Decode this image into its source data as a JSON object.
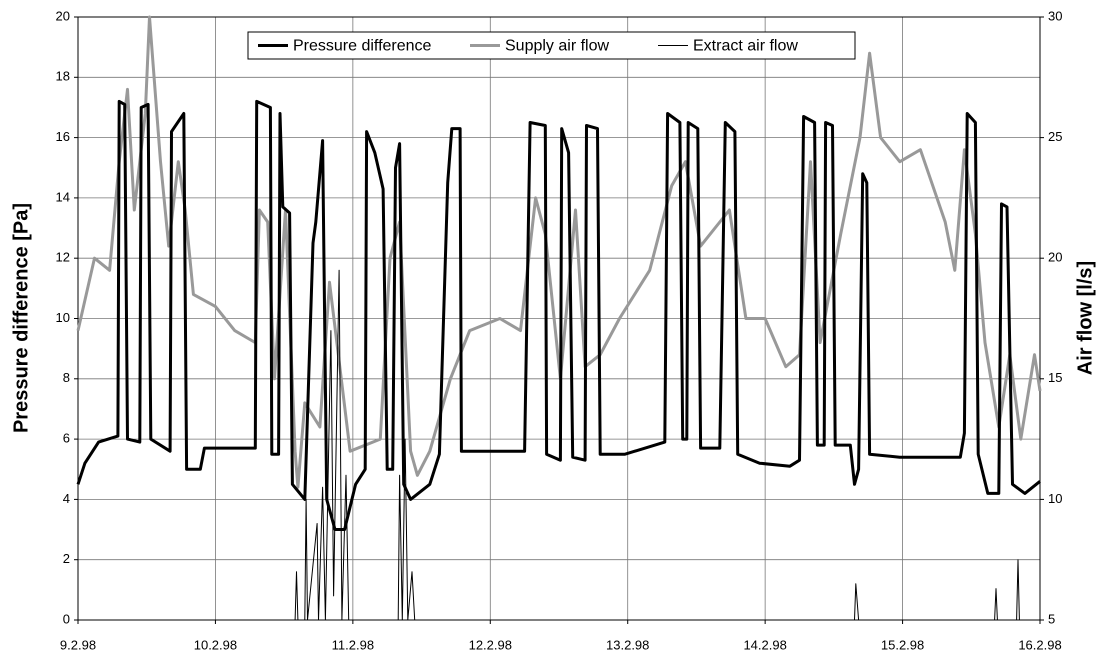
{
  "chart_data": {
    "type": "line",
    "y_label": "Pressure difference  [Pa]",
    "y2_label": "Air flow  [l/s]",
    "xlim": [
      0,
      7
    ],
    "xticks": [
      {
        "value": 0,
        "label": "9.2.98"
      },
      {
        "value": 1,
        "label": "10.2.98"
      },
      {
        "value": 2,
        "label": "11.2.98"
      },
      {
        "value": 3,
        "label": "12.2.98"
      },
      {
        "value": 4,
        "label": "13.2.98"
      },
      {
        "value": 5,
        "label": "14.2.98"
      },
      {
        "value": 6,
        "label": "15.2.98"
      },
      {
        "value": 7,
        "label": "16.2.98"
      }
    ],
    "ylim": [
      0,
      20
    ],
    "yticks": [
      0,
      2,
      4,
      6,
      8,
      10,
      12,
      14,
      16,
      18,
      20
    ],
    "y2lim": [
      5,
      30
    ],
    "y2ticks": [
      5,
      10,
      15,
      20,
      25,
      30
    ],
    "grid": true,
    "legend": "top",
    "series": [
      {
        "name": "Pressure difference",
        "color": "#000000",
        "width": 3,
        "axis": "y",
        "x": [
          0,
          0.05,
          0.15,
          0.29,
          0.3,
          0.34,
          0.36,
          0.45,
          0.46,
          0.51,
          0.53,
          0.67,
          0.68,
          0.77,
          0.79,
          0.89,
          0.92,
          1.29,
          1.3,
          1.4,
          1.41,
          1.46,
          1.47,
          1.49,
          1.54,
          1.56,
          1.65,
          1.71,
          1.73,
          1.78,
          1.81,
          1.87,
          1.94,
          2.02,
          2.09,
          2.1,
          2.16,
          2.22,
          2.25,
          2.29,
          2.31,
          2.34,
          2.37,
          2.42,
          2.56,
          2.63,
          2.69,
          2.72,
          2.78,
          2.79,
          3.25,
          3.29,
          3.4,
          3.41,
          3.51,
          3.52,
          3.57,
          3.6,
          3.69,
          3.7,
          3.78,
          3.8,
          3.98,
          4.27,
          4.29,
          4.38,
          4.4,
          4.43,
          4.44,
          4.51,
          4.53,
          4.67,
          4.71,
          4.78,
          4.8,
          4.96,
          5.18,
          5.25,
          5.28,
          5.36,
          5.38,
          5.43,
          5.44,
          5.49,
          5.51,
          5.62,
          5.65,
          5.68,
          5.71,
          5.74,
          5.76,
          5.98,
          6.42,
          6.45,
          6.47,
          6.53,
          6.55,
          6.62,
          6.7,
          6.72,
          6.76,
          6.8,
          6.89,
          7.0
        ],
        "values": [
          4.5,
          5.2,
          5.9,
          6.1,
          17.2,
          17.1,
          6,
          5.9,
          17,
          17.1,
          6,
          5.6,
          16.2,
          16.8,
          5,
          5,
          5.7,
          5.7,
          17.2,
          17,
          5.5,
          5.5,
          16.8,
          13.7,
          13.5,
          4.5,
          4,
          12.5,
          13.2,
          15.9,
          4,
          3,
          3,
          4.5,
          5,
          16.2,
          15.5,
          14.3,
          5,
          5,
          15,
          15.8,
          4.5,
          4,
          4.5,
          5.5,
          14.5,
          16.3,
          16.3,
          5.6,
          5.6,
          16.5,
          16.4,
          5.5,
          5.3,
          16.3,
          15.5,
          5.4,
          5.3,
          16.4,
          16.3,
          5.5,
          5.5,
          5.9,
          16.8,
          16.5,
          6,
          6,
          16.5,
          16.3,
          5.7,
          5.7,
          16.5,
          16.2,
          5.5,
          5.2,
          5.1,
          5.3,
          16.7,
          16.5,
          5.8,
          5.8,
          16.5,
          16.4,
          5.8,
          5.8,
          4.5,
          5,
          14.8,
          14.5,
          5.5,
          5.4,
          5.4,
          6.2,
          16.8,
          16.5,
          5.5,
          4.2,
          4.2,
          13.8,
          13.7,
          4.5,
          4.2,
          4.6
        ]
      },
      {
        "name": "Supply air flow",
        "color": "#999999",
        "width": 3,
        "axis": "y2",
        "x": [
          0,
          0.12,
          0.23,
          0.3,
          0.36,
          0.41,
          0.49,
          0.52,
          0.6,
          0.66,
          0.73,
          0.78,
          0.84,
          1.0,
          1.14,
          1.29,
          1.32,
          1.38,
          1.43,
          1.51,
          1.58,
          1.6,
          1.65,
          1.76,
          1.83,
          1.98,
          2.2,
          2.27,
          2.34,
          2.42,
          2.47,
          2.56,
          2.71,
          2.85,
          3.07,
          3.22,
          3.33,
          3.4,
          3.51,
          3.62,
          3.69,
          3.8,
          3.94,
          4.16,
          4.32,
          4.42,
          4.53,
          4.74,
          4.86,
          5.0,
          5.15,
          5.25,
          5.33,
          5.4,
          5.55,
          5.69,
          5.76,
          5.84,
          5.98,
          6.13,
          6.31,
          6.38,
          6.45,
          6.53,
          6.6,
          6.7,
          6.78,
          6.86,
          6.96,
          7.0
        ],
        "values": [
          17,
          20,
          19.5,
          24,
          27,
          22,
          26,
          30,
          24,
          20.5,
          24,
          22,
          18.5,
          18,
          17,
          16.5,
          22,
          21.5,
          15,
          22,
          12,
          10.5,
          14,
          13,
          19,
          12,
          12.5,
          20,
          21.5,
          12,
          11,
          12,
          15,
          17,
          17.5,
          17,
          22.5,
          21,
          15,
          22,
          15.5,
          16,
          17.5,
          19.5,
          23,
          24,
          20.5,
          22,
          17.5,
          17.5,
          15.5,
          16,
          24,
          16.5,
          21,
          25,
          28.5,
          25,
          24,
          24.5,
          21.5,
          19.5,
          24.5,
          21,
          16.5,
          13,
          16,
          12.5,
          16,
          14.5
        ]
      },
      {
        "name": "Extract air flow",
        "color": "#000000",
        "width": 1,
        "axis": "y2",
        "x": [
          0,
          1.58,
          1.59,
          1.6,
          1.65,
          1.66,
          1.67,
          1.74,
          1.75,
          1.78,
          1.8,
          1.84,
          1.86,
          1.9,
          1.92,
          1.95,
          1.97,
          2.33,
          2.34,
          2.36,
          2.38,
          2.4,
          2.43,
          2.45,
          5.65,
          5.66,
          5.68,
          6.67,
          6.68,
          6.69,
          6.83,
          6.84,
          6.85,
          7
        ],
        "values": [
          5,
          5,
          7,
          5,
          5,
          10,
          5,
          9,
          5,
          10.5,
          5,
          17,
          6,
          19.5,
          5,
          11,
          5,
          5,
          11,
          5,
          12.5,
          5,
          7,
          5,
          5,
          6.5,
          5,
          5,
          6.3,
          5,
          5,
          7.5,
          5,
          5
        ]
      }
    ]
  }
}
